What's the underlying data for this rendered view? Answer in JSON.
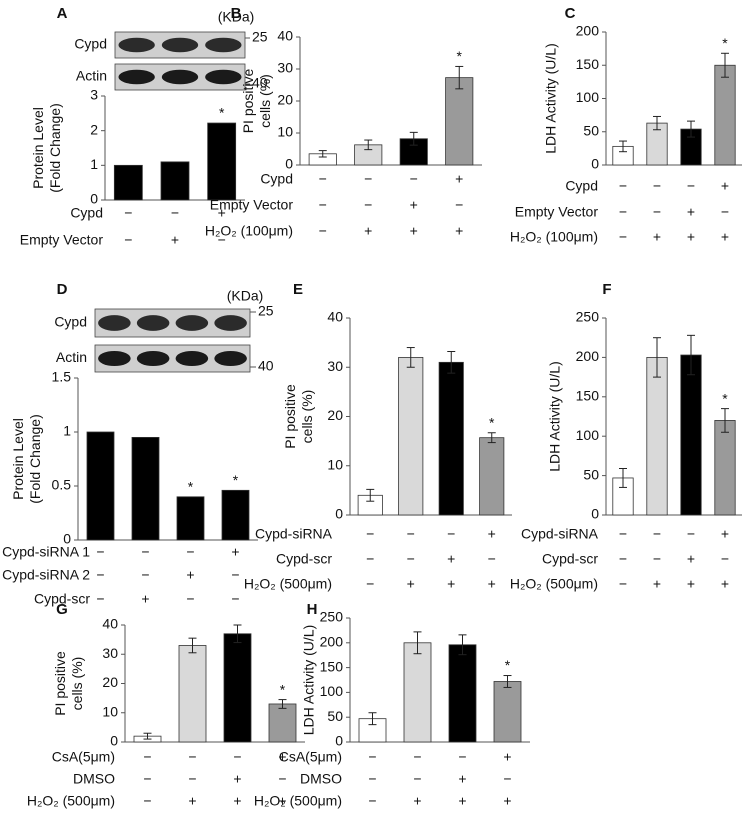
{
  "chart_data": [
    {
      "type": "bar",
      "panel": "A",
      "ylabel": [
        "Protein Level",
        "(Fold Change)"
      ],
      "ylim": [
        0,
        3
      ],
      "yticks": [
        0,
        1,
        2,
        3
      ],
      "values": [
        1,
        1.1,
        2.22
      ],
      "colors": [
        "#000000",
        "#000000",
        "#000000"
      ],
      "stars": [
        null,
        null,
        "*"
      ],
      "conditions": [
        {
          "name": "Cypd",
          "signs": [
            "−",
            "−",
            "+"
          ]
        },
        {
          "name": "Empty Vector",
          "signs": [
            "−",
            "+",
            "−"
          ]
        }
      ],
      "blot": {
        "rows": [
          "Cypd",
          "Actin"
        ],
        "unit": "(KDa)",
        "markers": [
          "25",
          "40"
        ]
      }
    },
    {
      "type": "bar",
      "panel": "B",
      "ylabel": [
        "PI positive",
        "cells (%)"
      ],
      "ylim": [
        0,
        40
      ],
      "yticks": [
        0,
        10,
        20,
        30,
        40
      ],
      "values": [
        3.5,
        6.3,
        8.2,
        27.3
      ],
      "errors": [
        1,
        1.5,
        2,
        3.5
      ],
      "colors": [
        "#ffffff",
        "#d9d9d9",
        "#000000",
        "#9a9a9a"
      ],
      "stars": [
        null,
        null,
        null,
        "*"
      ],
      "conditions": [
        {
          "name": "Cypd",
          "signs": [
            "−",
            "−",
            "−",
            "+"
          ]
        },
        {
          "name": "Empty Vector",
          "signs": [
            "−",
            "−",
            "+",
            "−"
          ]
        },
        {
          "name": "H₂O₂ (100μm)",
          "signs": [
            "−",
            "+",
            "+",
            "+"
          ]
        }
      ]
    },
    {
      "type": "bar",
      "panel": "C",
      "ylabel": [
        "LDH  Activity (U/L)"
      ],
      "ylim": [
        0,
        200
      ],
      "yticks": [
        0,
        50,
        100,
        150,
        200
      ],
      "values": [
        28,
        63,
        54,
        150
      ],
      "errors": [
        8,
        10,
        12,
        18
      ],
      "colors": [
        "#ffffff",
        "#d9d9d9",
        "#000000",
        "#9a9a9a"
      ],
      "stars": [
        null,
        null,
        null,
        "*"
      ],
      "conditions": [
        {
          "name": "Cypd",
          "signs": [
            "−",
            "−",
            "−",
            "+"
          ]
        },
        {
          "name": "Empty Vector",
          "signs": [
            "−",
            "−",
            "+",
            "−"
          ]
        },
        {
          "name": "H₂O₂ (100μm)",
          "signs": [
            "−",
            "+",
            "+",
            "+"
          ]
        }
      ]
    },
    {
      "type": "bar",
      "panel": "D",
      "ylabel": [
        "Protein Level",
        "(Fold Change)"
      ],
      "ylim": [
        0,
        1.5
      ],
      "yticks": [
        0,
        0.5,
        1,
        1.5
      ],
      "values": [
        1,
        0.95,
        0.4,
        0.46
      ],
      "colors": [
        "#000000",
        "#000000",
        "#000000",
        "#000000"
      ],
      "stars": [
        null,
        null,
        "*",
        "*"
      ],
      "conditions": [
        {
          "name": "Cypd-siRNA 1",
          "signs": [
            "−",
            "−",
            "−",
            "+"
          ]
        },
        {
          "name": "Cypd-siRNA 2",
          "signs": [
            "−",
            "−",
            "+",
            "−"
          ]
        },
        {
          "name": "Cypd-scr",
          "signs": [
            "−",
            "+",
            "−",
            "−"
          ]
        }
      ],
      "blot": {
        "rows": [
          "Cypd",
          "Actin"
        ],
        "unit": "(KDa)",
        "markers": [
          "25",
          "40"
        ]
      }
    },
    {
      "type": "bar",
      "panel": "E",
      "ylabel": [
        "PI positive",
        "cells (%)"
      ],
      "ylim": [
        0,
        40
      ],
      "yticks": [
        0,
        10,
        20,
        30,
        40
      ],
      "values": [
        4,
        32,
        31,
        15.7
      ],
      "errors": [
        1.2,
        2,
        2.2,
        1
      ],
      "colors": [
        "#ffffff",
        "#d9d9d9",
        "#000000",
        "#9a9a9a"
      ],
      "stars": [
        null,
        null,
        null,
        "*"
      ],
      "conditions": [
        {
          "name": "Cypd-siRNA",
          "signs": [
            "−",
            "−",
            "−",
            "+"
          ]
        },
        {
          "name": "Cypd-scr",
          "signs": [
            "−",
            "−",
            "+",
            "−"
          ]
        },
        {
          "name": "H₂O₂ (500μm)",
          "signs": [
            "−",
            "+",
            "+",
            "+"
          ]
        }
      ]
    },
    {
      "type": "bar",
      "panel": "F",
      "ylabel": [
        "LDH  Activity (U/L)"
      ],
      "ylim": [
        0,
        250
      ],
      "yticks": [
        0,
        50,
        100,
        150,
        200,
        250
      ],
      "values": [
        47,
        200,
        203,
        120
      ],
      "errors": [
        12,
        25,
        25,
        15
      ],
      "colors": [
        "#ffffff",
        "#d9d9d9",
        "#000000",
        "#9a9a9a"
      ],
      "stars": [
        null,
        null,
        null,
        "*"
      ],
      "conditions": [
        {
          "name": "Cypd-siRNA",
          "signs": [
            "−",
            "−",
            "−",
            "+"
          ]
        },
        {
          "name": "Cypd-scr",
          "signs": [
            "−",
            "−",
            "+",
            "−"
          ]
        },
        {
          "name": "H₂O₂ (500μm)",
          "signs": [
            "−",
            "+",
            "+",
            "+"
          ]
        }
      ]
    },
    {
      "type": "bar",
      "panel": "G",
      "ylabel": [
        "PI positive",
        "cells (%)"
      ],
      "ylim": [
        0,
        40
      ],
      "yticks": [
        0,
        10,
        20,
        30,
        40
      ],
      "values": [
        2,
        33,
        37,
        13
      ],
      "errors": [
        1,
        2.5,
        3,
        1.5
      ],
      "colors": [
        "#ffffff",
        "#d9d9d9",
        "#000000",
        "#9a9a9a"
      ],
      "stars": [
        null,
        null,
        null,
        "*"
      ],
      "conditions": [
        {
          "name": "CsA(5μm)",
          "signs": [
            "−",
            "−",
            "−",
            "+"
          ]
        },
        {
          "name": "DMSO",
          "signs": [
            "−",
            "−",
            "+",
            "−"
          ]
        },
        {
          "name": "H₂O₂ (500μm)",
          "signs": [
            "−",
            "+",
            "+",
            "+"
          ]
        }
      ]
    },
    {
      "type": "bar",
      "panel": "H",
      "ylabel": [
        "LDH  Activity (U/L)"
      ],
      "ylim": [
        0,
        250
      ],
      "yticks": [
        0,
        50,
        100,
        150,
        200,
        250
      ],
      "values": [
        47,
        200,
        196,
        122
      ],
      "errors": [
        12,
        22,
        20,
        12
      ],
      "colors": [
        "#ffffff",
        "#d9d9d9",
        "#000000",
        "#9a9a9a"
      ],
      "stars": [
        null,
        null,
        null,
        "*"
      ],
      "conditions": [
        {
          "name": "CsA(5μm)",
          "signs": [
            "−",
            "−",
            "−",
            "+"
          ]
        },
        {
          "name": "DMSO",
          "signs": [
            "−",
            "−",
            "+",
            "−"
          ]
        },
        {
          "name": "H₂O₂ (500μm)",
          "signs": [
            "−",
            "+",
            "+",
            "+"
          ]
        }
      ]
    }
  ]
}
